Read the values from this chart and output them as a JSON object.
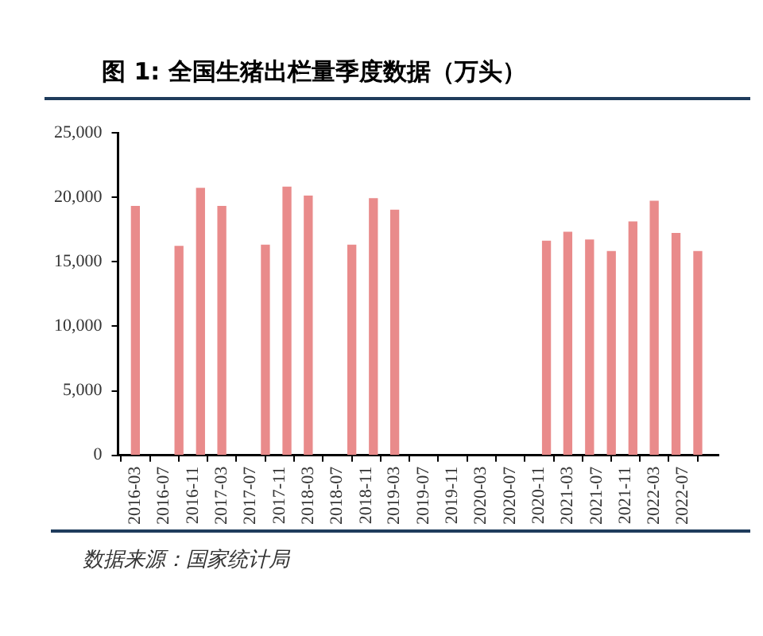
{
  "chart_data": {
    "type": "bar",
    "title": "图 1: 全国生猪出栏量季度数据（万头）",
    "annotations": [
      "数据来源：国家统计局"
    ],
    "x": [
      "2016-03",
      "2016-06",
      "2016-09",
      "2016-12",
      "2017-03",
      "2017-06",
      "2017-09",
      "2017-12",
      "2018-03",
      "2018-06",
      "2018-09",
      "2018-12",
      "2019-03",
      "2019-06",
      "2019-09",
      "2019-12",
      "2020-03",
      "2020-06",
      "2020-09",
      "2020-12",
      "2021-03",
      "2021-06",
      "2021-09",
      "2021-12",
      "2022-03",
      "2022-06",
      "2022-09"
    ],
    "values": [
      19300,
      null,
      16200,
      20700,
      19300,
      null,
      16300,
      20800,
      20100,
      null,
      16300,
      19900,
      19000,
      null,
      null,
      null,
      null,
      null,
      null,
      16600,
      17300,
      16700,
      15800,
      18100,
      19700,
      17200,
      15800
    ],
    "color": "#e98b8b",
    "xlim": [
      "2016-02-20",
      "2022-09-25"
    ],
    "xticks": [
      "2016-03",
      "2016-07",
      "2016-11",
      "2017-03",
      "2017-07",
      "2017-11",
      "2018-03",
      "2018-07",
      "2018-11",
      "2019-03",
      "2019-07",
      "2019-11",
      "2020-03",
      "2020-07",
      "2020-11",
      "2021-03",
      "2021-07",
      "2021-11",
      "2022-03",
      "2022-07"
    ],
    "ylim": [
      0,
      25000
    ],
    "yticks": [
      {
        "value": 0,
        "label": "0"
      },
      {
        "value": 5000,
        "label": "5,000"
      },
      {
        "value": 10000,
        "label": "10,000"
      },
      {
        "value": 15000,
        "label": "15,000"
      },
      {
        "value": 20000,
        "label": "20,000"
      },
      {
        "value": 25000,
        "label": "25,000"
      }
    ]
  }
}
